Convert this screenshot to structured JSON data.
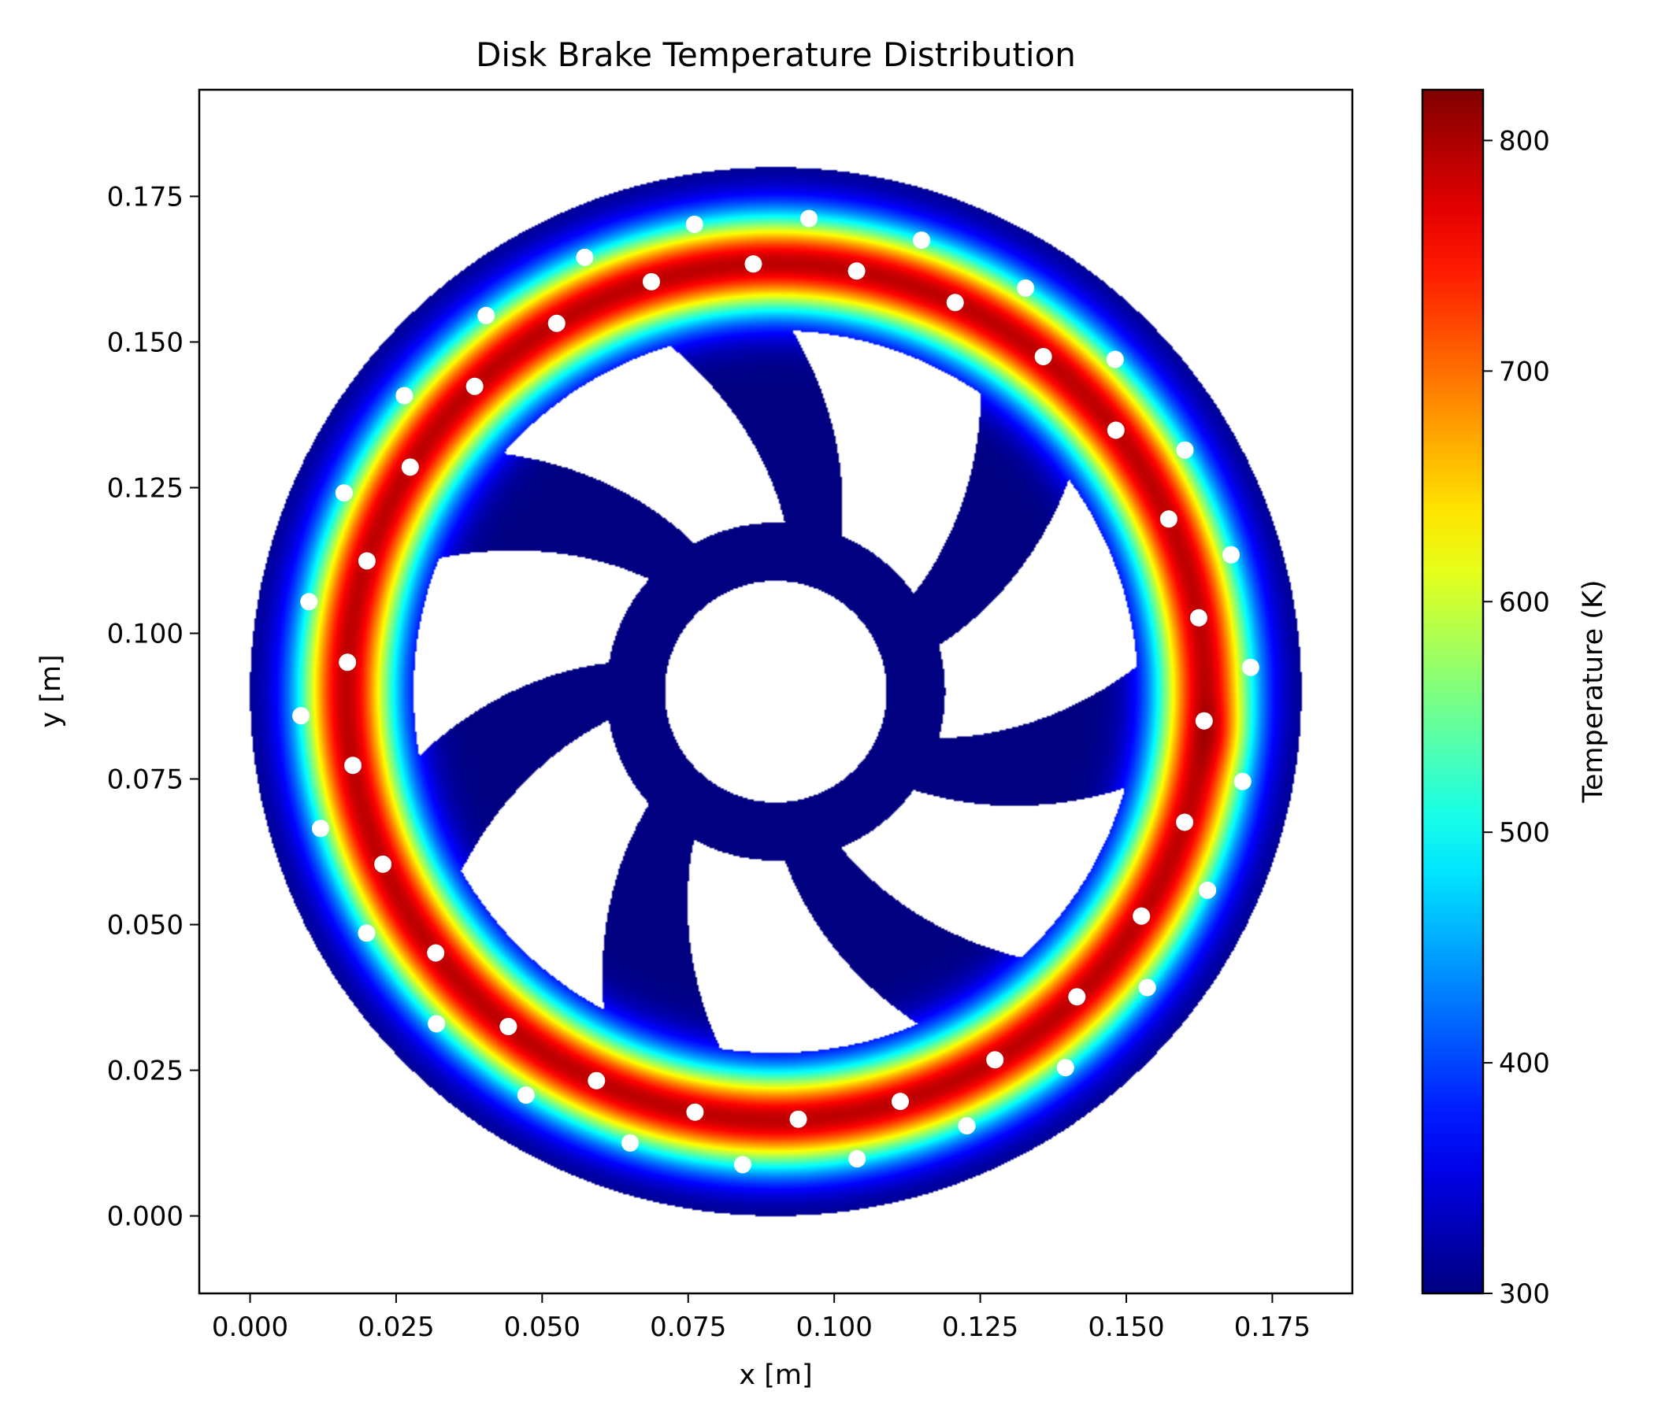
{
  "chart_data": {
    "type": "heatmap",
    "title": "Disk Brake Temperature Distribution",
    "xlabel": "x [m]",
    "ylabel": "y [m]",
    "xlim": [
      -0.0087,
      0.1887
    ],
    "ylim": [
      -0.0133,
      0.1933
    ],
    "xticks": [
      {
        "value": 0.0,
        "label": "0.000"
      },
      {
        "value": 0.025,
        "label": "0.025"
      },
      {
        "value": 0.05,
        "label": "0.050"
      },
      {
        "value": 0.075,
        "label": "0.075"
      },
      {
        "value": 0.1,
        "label": "0.100"
      },
      {
        "value": 0.125,
        "label": "0.125"
      },
      {
        "value": 0.15,
        "label": "0.150"
      },
      {
        "value": 0.175,
        "label": "0.175"
      }
    ],
    "yticks": [
      {
        "value": 0.0,
        "label": "0.000"
      },
      {
        "value": 0.025,
        "label": "0.025"
      },
      {
        "value": 0.05,
        "label": "0.050"
      },
      {
        "value": 0.075,
        "label": "0.075"
      },
      {
        "value": 0.1,
        "label": "0.100"
      },
      {
        "value": 0.125,
        "label": "0.125"
      },
      {
        "value": 0.15,
        "label": "0.150"
      },
      {
        "value": 0.175,
        "label": "0.175"
      }
    ],
    "colorbar": {
      "label": "Temperature (K)",
      "colormap": "jet",
      "range": [
        300,
        822
      ],
      "ticks": [
        {
          "value": 300,
          "label": "300"
        },
        {
          "value": 400,
          "label": "400"
        },
        {
          "value": 500,
          "label": "500"
        },
        {
          "value": 600,
          "label": "600"
        },
        {
          "value": 700,
          "label": "700"
        },
        {
          "value": 800,
          "label": "800"
        }
      ]
    },
    "disk": {
      "center": [
        0.09,
        0.09
      ],
      "outer_radius": 0.09,
      "center_hole_radius": 0.019,
      "ambient_temperature": 300,
      "peak_temperature": 790,
      "hot_band_center_radius": 0.0735,
      "hot_band_half_width": 0.0085,
      "hot_spot": {
        "x": 0.1685,
        "y": 0.0825,
        "temperature": 822
      }
    },
    "vent_holes": {
      "color": "#ffffff",
      "inner_ring": {
        "count": 26,
        "radius": 0.0735,
        "start_angle_deg": 93
      },
      "outer_ring": {
        "count": 26,
        "radius": 0.0814,
        "start_angle_deg": 86
      }
    },
    "cutouts": {
      "count": 7,
      "inner_radius": 0.029,
      "outer_radius": 0.062,
      "start_angle_deg": 20
    }
  }
}
